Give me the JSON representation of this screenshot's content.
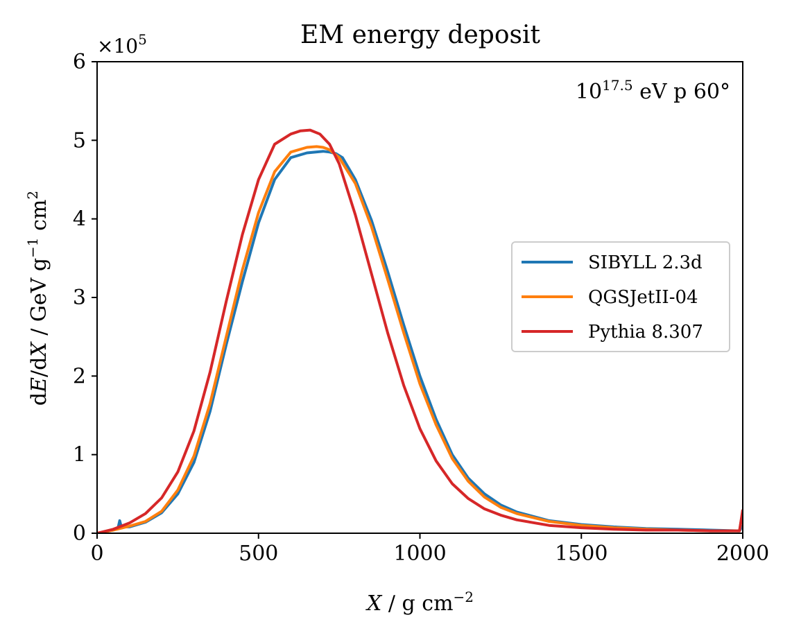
{
  "chart_data": {
    "type": "line",
    "title": "EM energy deposit",
    "annotation": "10^17.5 eV p 60°",
    "annotation_parts": {
      "base": "10",
      "exponent": "17.5",
      "rest": " eV p 60°"
    },
    "xlabel": {
      "var": "X",
      "sep": " / ",
      "unit": "g cm",
      "exp": "−2"
    },
    "ylabel": {
      "prefix": "d",
      "var1": "E",
      "mid": "/d",
      "var2": "X",
      "sep": " / ",
      "unit1": "GeV g",
      "exp1": "−1",
      "unit2": " cm",
      "exp2": "2"
    },
    "y_multiplier": {
      "times": "×10",
      "exp": "5"
    },
    "xlim": [
      0,
      2000
    ],
    "ylim": [
      0,
      6
    ],
    "xticks": [
      0,
      500,
      1000,
      1500,
      2000
    ],
    "yticks": [
      0,
      1,
      2,
      3,
      4,
      5,
      6
    ],
    "grid": false,
    "legend_position": "center-right",
    "series": [
      {
        "name": "SIBYLL 2.3d",
        "color": "#1f77b4",
        "x": [
          0,
          50,
          65,
          70,
          75,
          100,
          150,
          200,
          250,
          300,
          350,
          400,
          450,
          500,
          550,
          600,
          650,
          700,
          720,
          740,
          760,
          800,
          850,
          900,
          950,
          1000,
          1050,
          1100,
          1150,
          1200,
          1250,
          1300,
          1400,
          1500,
          1600,
          1700,
          1800,
          1900,
          1990,
          2000
        ],
        "y": [
          0,
          0.04,
          0.07,
          0.16,
          0.08,
          0.08,
          0.14,
          0.26,
          0.5,
          0.9,
          1.55,
          2.4,
          3.2,
          3.95,
          4.5,
          4.78,
          4.84,
          4.86,
          4.85,
          4.83,
          4.78,
          4.5,
          3.98,
          3.33,
          2.65,
          2.0,
          1.45,
          1.0,
          0.7,
          0.5,
          0.36,
          0.27,
          0.16,
          0.11,
          0.08,
          0.06,
          0.05,
          0.04,
          0.03,
          0.1
        ]
      },
      {
        "name": "QGSJetII-04",
        "color": "#ff7f0e",
        "x": [
          0,
          50,
          100,
          150,
          200,
          250,
          300,
          350,
          400,
          450,
          500,
          550,
          600,
          650,
          680,
          700,
          720,
          750,
          800,
          850,
          900,
          950,
          1000,
          1050,
          1100,
          1150,
          1200,
          1250,
          1300,
          1400,
          1500,
          1600,
          1700,
          1800,
          1900,
          1990,
          2000
        ],
        "y": [
          0,
          0.04,
          0.09,
          0.15,
          0.28,
          0.55,
          0.98,
          1.65,
          2.5,
          3.35,
          4.08,
          4.6,
          4.85,
          4.91,
          4.92,
          4.91,
          4.88,
          4.78,
          4.45,
          3.9,
          3.23,
          2.55,
          1.9,
          1.38,
          0.95,
          0.66,
          0.46,
          0.33,
          0.25,
          0.15,
          0.1,
          0.07,
          0.05,
          0.04,
          0.03,
          0.03,
          0.28
        ]
      },
      {
        "name": "Pythia 8.307",
        "color": "#d62728",
        "x": [
          0,
          50,
          100,
          150,
          200,
          250,
          300,
          350,
          400,
          450,
          500,
          550,
          600,
          630,
          660,
          690,
          720,
          750,
          800,
          850,
          900,
          950,
          1000,
          1050,
          1100,
          1150,
          1200,
          1250,
          1300,
          1400,
          1500,
          1600,
          1700,
          1800,
          1900,
          1990,
          2000
        ],
        "y": [
          0,
          0.05,
          0.13,
          0.25,
          0.45,
          0.78,
          1.3,
          2.05,
          2.95,
          3.8,
          4.5,
          4.95,
          5.08,
          5.12,
          5.13,
          5.08,
          4.95,
          4.7,
          4.05,
          3.3,
          2.55,
          1.88,
          1.33,
          0.92,
          0.63,
          0.44,
          0.31,
          0.23,
          0.17,
          0.1,
          0.07,
          0.05,
          0.04,
          0.04,
          0.03,
          0.03,
          0.3
        ]
      }
    ]
  }
}
